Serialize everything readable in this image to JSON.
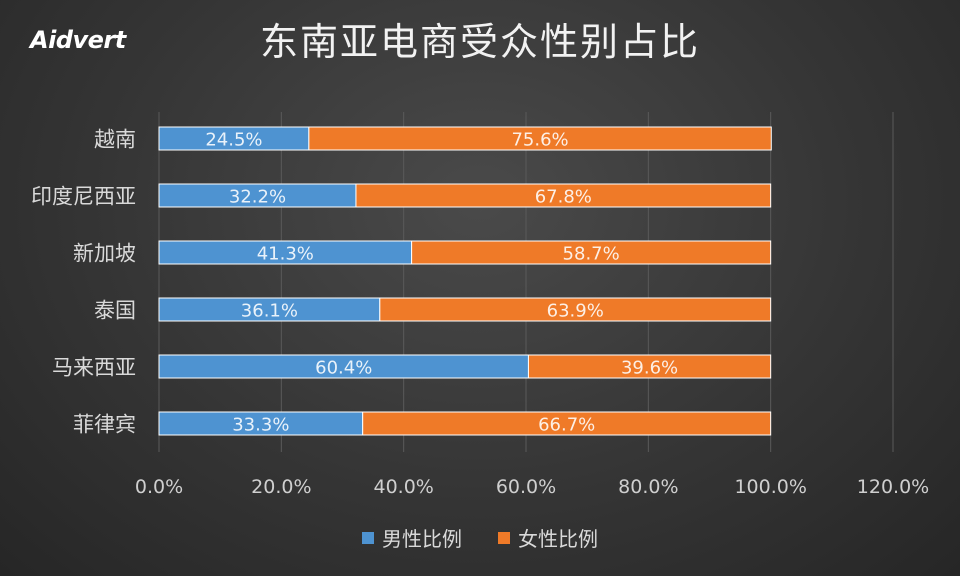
{
  "logo": "Aidvert",
  "chart_data": {
    "type": "bar",
    "orientation": "horizontal",
    "stacked": true,
    "title": "东南亚电商受众性别占比",
    "categories": [
      "越南",
      "印度尼西亚",
      "新加坡",
      "泰国",
      "马来西亚",
      "菲律宾"
    ],
    "series": [
      {
        "name": "男性比例",
        "color": "#4e93d1",
        "values": [
          24.5,
          32.2,
          41.3,
          36.1,
          60.4,
          33.3
        ],
        "labels": [
          "24.5%",
          "32.2%",
          "41.3%",
          "36.1%",
          "60.4%",
          "33.3%"
        ]
      },
      {
        "name": "女性比例",
        "color": "#ef7a28",
        "values": [
          75.6,
          67.8,
          58.7,
          63.9,
          39.6,
          66.7
        ],
        "labels": [
          "75.6%",
          "67.8%",
          "58.7%",
          "63.9%",
          "39.6%",
          "66.7%"
        ]
      }
    ],
    "xlim": [
      0,
      120
    ],
    "xticks": [
      "0.0%",
      "20.0%",
      "40.0%",
      "60.0%",
      "80.0%",
      "100.0%",
      "120.0%"
    ],
    "grid": true,
    "legend_position": "bottom"
  }
}
